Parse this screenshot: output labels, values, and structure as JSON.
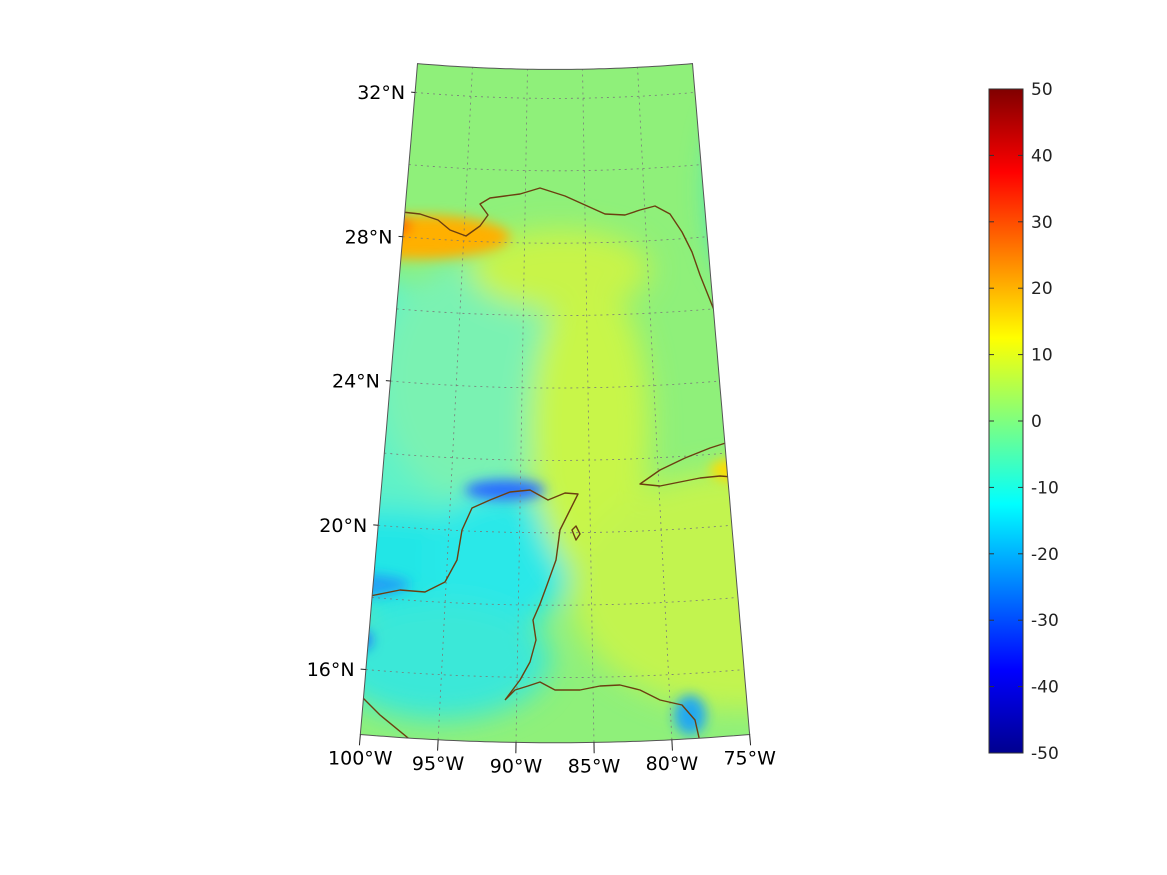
{
  "map": {
    "projection": "conic",
    "region": "Gulf of Mexico and Caribbean",
    "lon_range": [
      -100,
      -75
    ],
    "lat_range": [
      14,
      33
    ],
    "graticule": "dotted",
    "coastline_color": "#6b3f10",
    "lat_ticks": [
      {
        "lat": 32,
        "label": "32°N"
      },
      {
        "lat": 28,
        "label": "28°N"
      },
      {
        "lat": 24,
        "label": "24°N"
      },
      {
        "lat": 20,
        "label": "20°N"
      },
      {
        "lat": 16,
        "label": "16°N"
      }
    ],
    "lon_ticks": [
      {
        "lon": -100,
        "label": "100°W"
      },
      {
        "lon": -95,
        "label": "95°W"
      },
      {
        "lon": -90,
        "label": "90°W"
      },
      {
        "lon": -85,
        "label": "85°W"
      },
      {
        "lon": -80,
        "label": "80°W"
      },
      {
        "lon": -75,
        "label": "75°W"
      }
    ]
  },
  "colorbar": {
    "colormap": "jet",
    "min": -50,
    "max": 50,
    "tick_labels": [
      "50",
      "40",
      "30",
      "20",
      "10",
      "0",
      "-10",
      "-20",
      "-30",
      "-40",
      "-50"
    ]
  }
}
